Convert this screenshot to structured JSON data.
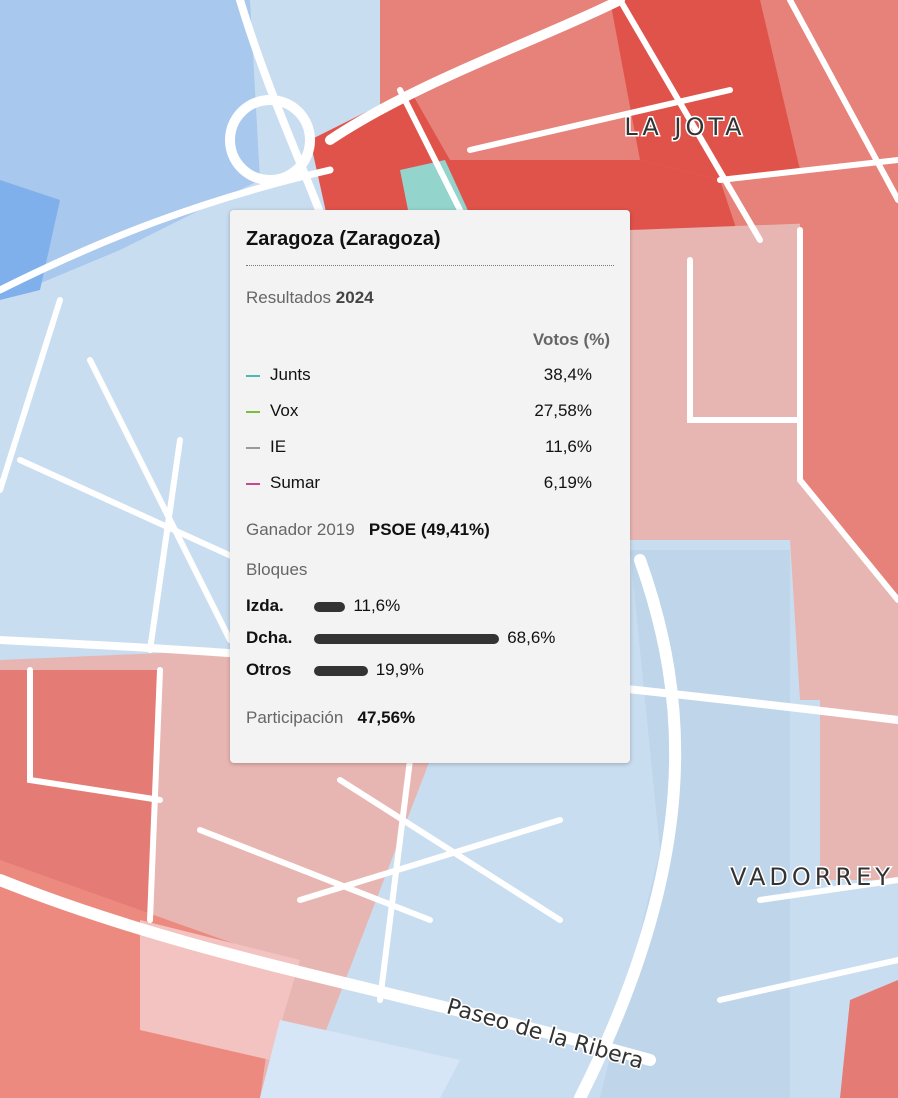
{
  "map_labels": [
    "LA JOTA",
    "VADORREY",
    "Paseo de la Ribera"
  ],
  "tooltip": {
    "title": "Zaragoza (Zaragoza)",
    "results_label": "Resultados",
    "results_year": "2024",
    "votes_header": "Votos (%)",
    "parties": [
      {
        "name": "Junts",
        "color": "#4fb8b3",
        "votes": "38,4%"
      },
      {
        "name": "Vox",
        "color": "#7cbd3e",
        "votes": "27,58%"
      },
      {
        "name": "IE",
        "color": "#999999",
        "votes": "11,6%"
      },
      {
        "name": "Sumar",
        "color": "#c8488f",
        "votes": "6,19%"
      }
    ],
    "winner_label": "Ganador 2019",
    "winner": "PSOE (49,41%)",
    "blocs_label": "Bloques",
    "blocs": [
      {
        "name": "Izda.",
        "value": 11.6,
        "value_label": "11,6%"
      },
      {
        "name": "Dcha.",
        "value": 68.6,
        "value_label": "68,6%"
      },
      {
        "name": "Otros",
        "value": 19.9,
        "value_label": "19,9%"
      }
    ],
    "turnout_label": "Participación",
    "turnout": "47,56%"
  }
}
